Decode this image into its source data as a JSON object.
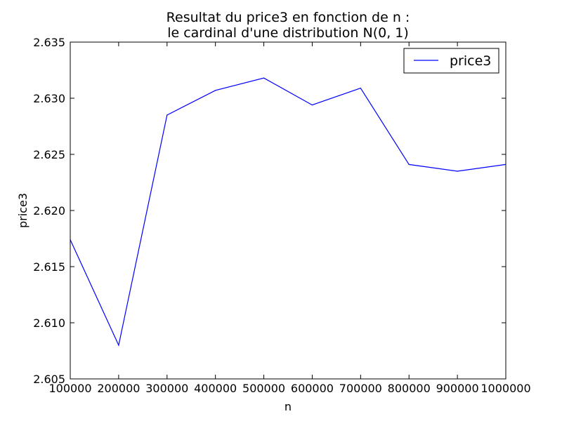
{
  "chart_data": {
    "type": "line",
    "title_lines": [
      "Resultat du price3 en fonction de n :",
      "le cardinal d'une distribution N(0, 1)"
    ],
    "xlabel": "n",
    "ylabel": "price3",
    "x": [
      100000,
      200000,
      300000,
      400000,
      500000,
      600000,
      700000,
      800000,
      900000,
      1000000
    ],
    "series": [
      {
        "name": "price3",
        "color": "#0000ff",
        "values": [
          2.6174,
          2.608,
          2.6285,
          2.6307,
          2.6318,
          2.6294,
          2.6309,
          2.6241,
          2.6235,
          2.6241
        ]
      }
    ],
    "xlim": [
      100000,
      1000000
    ],
    "ylim": [
      2.605,
      2.635
    ],
    "xticks": [
      100000,
      200000,
      300000,
      400000,
      500000,
      600000,
      700000,
      800000,
      900000,
      1000000
    ],
    "xtick_labels": [
      "100000",
      "200000",
      "300000",
      "400000",
      "500000",
      "600000",
      "700000",
      "800000",
      "900000",
      "1000000"
    ],
    "yticks": [
      2.605,
      2.61,
      2.615,
      2.62,
      2.625,
      2.63,
      2.635
    ],
    "ytick_labels": [
      "2.605",
      "2.610",
      "2.615",
      "2.620",
      "2.625",
      "2.630",
      "2.635"
    ],
    "grid": false,
    "legend_position": "top-right"
  }
}
